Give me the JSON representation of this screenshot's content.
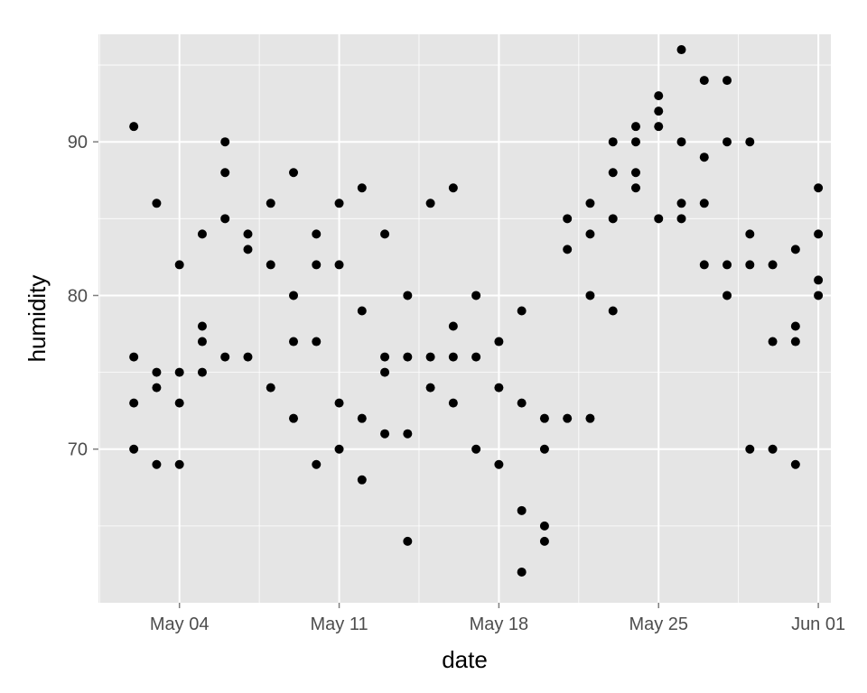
{
  "chart_data": {
    "type": "scatter",
    "title": "",
    "xlabel": "date",
    "ylabel": "humidity",
    "xlim": [
      "2015-05-01",
      "2015-06-01"
    ],
    "ylim": [
      60,
      97
    ],
    "grid": true,
    "x_ticks": [
      {
        "date": "2015-05-04",
        "label": "May 04"
      },
      {
        "date": "2015-05-11",
        "label": "May 11"
      },
      {
        "date": "2015-05-18",
        "label": "May 18"
      },
      {
        "date": "2015-05-25",
        "label": "May 25"
      },
      {
        "date": "2015-06-01",
        "label": "Jun 01"
      }
    ],
    "y_ticks": [
      70,
      80,
      90
    ],
    "point_color": "#000000",
    "panel_color": "#e5e5e5",
    "gridline_color": "#ffffff",
    "points": [
      {
        "x": "2015-05-02",
        "y": 91
      },
      {
        "x": "2015-05-02",
        "y": 76
      },
      {
        "x": "2015-05-02",
        "y": 73
      },
      {
        "x": "2015-05-02",
        "y": 70
      },
      {
        "x": "2015-05-03",
        "y": 86
      },
      {
        "x": "2015-05-03",
        "y": 75
      },
      {
        "x": "2015-05-03",
        "y": 74
      },
      {
        "x": "2015-05-03",
        "y": 69
      },
      {
        "x": "2015-05-04",
        "y": 82
      },
      {
        "x": "2015-05-04",
        "y": 75
      },
      {
        "x": "2015-05-04",
        "y": 73
      },
      {
        "x": "2015-05-04",
        "y": 69
      },
      {
        "x": "2015-05-05",
        "y": 84
      },
      {
        "x": "2015-05-05",
        "y": 78
      },
      {
        "x": "2015-05-05",
        "y": 77
      },
      {
        "x": "2015-05-05",
        "y": 75
      },
      {
        "x": "2015-05-06",
        "y": 90
      },
      {
        "x": "2015-05-06",
        "y": 88
      },
      {
        "x": "2015-05-06",
        "y": 85
      },
      {
        "x": "2015-05-06",
        "y": 76
      },
      {
        "x": "2015-05-07",
        "y": 84
      },
      {
        "x": "2015-05-07",
        "y": 83
      },
      {
        "x": "2015-05-07",
        "y": 76
      },
      {
        "x": "2015-05-08",
        "y": 86
      },
      {
        "x": "2015-05-08",
        "y": 82
      },
      {
        "x": "2015-05-08",
        "y": 74
      },
      {
        "x": "2015-05-09",
        "y": 88
      },
      {
        "x": "2015-05-09",
        "y": 80
      },
      {
        "x": "2015-05-09",
        "y": 77
      },
      {
        "x": "2015-05-09",
        "y": 72
      },
      {
        "x": "2015-05-10",
        "y": 84
      },
      {
        "x": "2015-05-10",
        "y": 82
      },
      {
        "x": "2015-05-10",
        "y": 77
      },
      {
        "x": "2015-05-10",
        "y": 69
      },
      {
        "x": "2015-05-11",
        "y": 86
      },
      {
        "x": "2015-05-11",
        "y": 82
      },
      {
        "x": "2015-05-11",
        "y": 73
      },
      {
        "x": "2015-05-11",
        "y": 70
      },
      {
        "x": "2015-05-12",
        "y": 87
      },
      {
        "x": "2015-05-12",
        "y": 79
      },
      {
        "x": "2015-05-12",
        "y": 72
      },
      {
        "x": "2015-05-12",
        "y": 68
      },
      {
        "x": "2015-05-13",
        "y": 84
      },
      {
        "x": "2015-05-13",
        "y": 76
      },
      {
        "x": "2015-05-13",
        "y": 75
      },
      {
        "x": "2015-05-13",
        "y": 71
      },
      {
        "x": "2015-05-14",
        "y": 80
      },
      {
        "x": "2015-05-14",
        "y": 76
      },
      {
        "x": "2015-05-14",
        "y": 71
      },
      {
        "x": "2015-05-14",
        "y": 64
      },
      {
        "x": "2015-05-15",
        "y": 86
      },
      {
        "x": "2015-05-15",
        "y": 76
      },
      {
        "x": "2015-05-15",
        "y": 74
      },
      {
        "x": "2015-05-16",
        "y": 87
      },
      {
        "x": "2015-05-16",
        "y": 78
      },
      {
        "x": "2015-05-16",
        "y": 76
      },
      {
        "x": "2015-05-16",
        "y": 73
      },
      {
        "x": "2015-05-17",
        "y": 80
      },
      {
        "x": "2015-05-17",
        "y": 76
      },
      {
        "x": "2015-05-17",
        "y": 70
      },
      {
        "x": "2015-05-18",
        "y": 77
      },
      {
        "x": "2015-05-18",
        "y": 74
      },
      {
        "x": "2015-05-18",
        "y": 69
      },
      {
        "x": "2015-05-19",
        "y": 79
      },
      {
        "x": "2015-05-19",
        "y": 73
      },
      {
        "x": "2015-05-19",
        "y": 66
      },
      {
        "x": "2015-05-19",
        "y": 62
      },
      {
        "x": "2015-05-20",
        "y": 72
      },
      {
        "x": "2015-05-20",
        "y": 70
      },
      {
        "x": "2015-05-20",
        "y": 65
      },
      {
        "x": "2015-05-20",
        "y": 64
      },
      {
        "x": "2015-05-21",
        "y": 85
      },
      {
        "x": "2015-05-21",
        "y": 83
      },
      {
        "x": "2015-05-21",
        "y": 72
      },
      {
        "x": "2015-05-22",
        "y": 86
      },
      {
        "x": "2015-05-22",
        "y": 84
      },
      {
        "x": "2015-05-22",
        "y": 80
      },
      {
        "x": "2015-05-22",
        "y": 72
      },
      {
        "x": "2015-05-23",
        "y": 90
      },
      {
        "x": "2015-05-23",
        "y": 88
      },
      {
        "x": "2015-05-23",
        "y": 85
      },
      {
        "x": "2015-05-23",
        "y": 79
      },
      {
        "x": "2015-05-24",
        "y": 91
      },
      {
        "x": "2015-05-24",
        "y": 90
      },
      {
        "x": "2015-05-24",
        "y": 88
      },
      {
        "x": "2015-05-24",
        "y": 87
      },
      {
        "x": "2015-05-25",
        "y": 93
      },
      {
        "x": "2015-05-25",
        "y": 92
      },
      {
        "x": "2015-05-25",
        "y": 91
      },
      {
        "x": "2015-05-25",
        "y": 85
      },
      {
        "x": "2015-05-26",
        "y": 96
      },
      {
        "x": "2015-05-26",
        "y": 90
      },
      {
        "x": "2015-05-26",
        "y": 86
      },
      {
        "x": "2015-05-26",
        "y": 85
      },
      {
        "x": "2015-05-27",
        "y": 94
      },
      {
        "x": "2015-05-27",
        "y": 89
      },
      {
        "x": "2015-05-27",
        "y": 86
      },
      {
        "x": "2015-05-27",
        "y": 82
      },
      {
        "x": "2015-05-28",
        "y": 94
      },
      {
        "x": "2015-05-28",
        "y": 90
      },
      {
        "x": "2015-05-28",
        "y": 82
      },
      {
        "x": "2015-05-28",
        "y": 80
      },
      {
        "x": "2015-05-29",
        "y": 90
      },
      {
        "x": "2015-05-29",
        "y": 84
      },
      {
        "x": "2015-05-29",
        "y": 82
      },
      {
        "x": "2015-05-29",
        "y": 70
      },
      {
        "x": "2015-05-30",
        "y": 82
      },
      {
        "x": "2015-05-30",
        "y": 77
      },
      {
        "x": "2015-05-30",
        "y": 70
      },
      {
        "x": "2015-05-31",
        "y": 83
      },
      {
        "x": "2015-05-31",
        "y": 78
      },
      {
        "x": "2015-05-31",
        "y": 77
      },
      {
        "x": "2015-05-31",
        "y": 69
      },
      {
        "x": "2015-06-01",
        "y": 87
      },
      {
        "x": "2015-06-01",
        "y": 84
      },
      {
        "x": "2015-06-01",
        "y": 81
      },
      {
        "x": "2015-06-01",
        "y": 80
      }
    ]
  }
}
